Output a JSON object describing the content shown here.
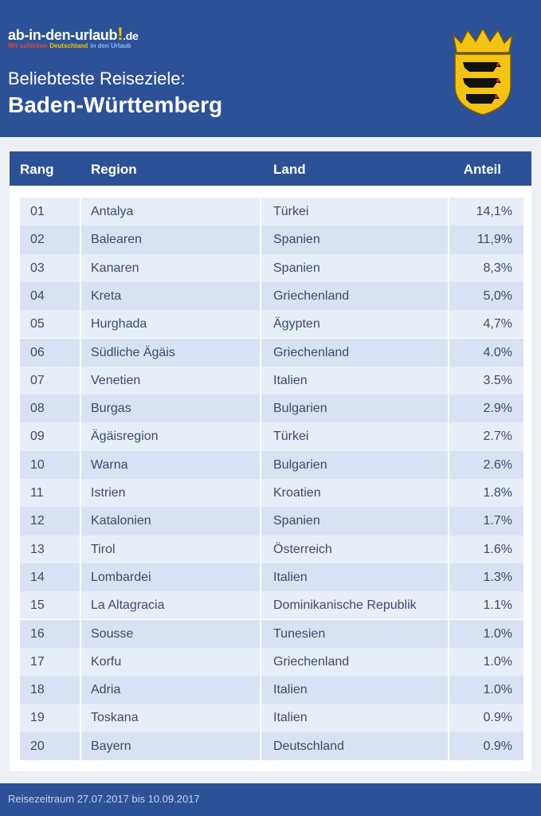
{
  "logo": {
    "name": "ab-in-den-urlaub",
    "mark": "!",
    "tld": ".de",
    "tagline": [
      "Wir schicken",
      "Deutschland",
      "in den Urlaub"
    ]
  },
  "header": {
    "subtitle": "Beliebteste Reiseziele:",
    "title": "Baden-Württemberg"
  },
  "table": {
    "columns": [
      "Rang",
      "Region",
      "Land",
      "Anteil"
    ],
    "rows": [
      [
        "01",
        "Antalya",
        "Türkei",
        "14,1%"
      ],
      [
        "02",
        "Balearen",
        "Spanien",
        "11,9%"
      ],
      [
        "03",
        "Kanaren",
        "Spanien",
        "8,3%"
      ],
      [
        "04",
        "Kreta",
        "Griechenland",
        "5,0%"
      ],
      [
        "05",
        "Hurghada",
        "Ägypten",
        "4,7%"
      ],
      [
        "06",
        "Südliche Ägäis",
        "Griechenland",
        "4.0%"
      ],
      [
        "07",
        "Venetien",
        "Italien",
        "3.5%"
      ],
      [
        "08",
        "Burgas",
        "Bulgarien",
        "2.9%"
      ],
      [
        "09",
        "Ägäisregion",
        "Türkei",
        "2.7%"
      ],
      [
        "10",
        "Warna",
        "Bulgarien",
        "2.6%"
      ],
      [
        "11",
        "Istrien",
        "Kroatien",
        "1.8%"
      ],
      [
        "12",
        "Katalonien",
        "Spanien",
        "1.7%"
      ],
      [
        "13",
        "Tirol",
        "Österreich",
        "1.6%"
      ],
      [
        "14",
        "Lombardei",
        "Italien",
        "1.3%"
      ],
      [
        "15",
        "La Altagracia",
        "Dominikanische Republik",
        "1.1%"
      ],
      [
        "16",
        "Sousse",
        "Tunesien",
        "1.0%"
      ],
      [
        "17",
        "Korfu",
        "Griechenland",
        "1.0%"
      ],
      [
        "18",
        "Adria",
        "Italien",
        "1.0%"
      ],
      [
        "19",
        "Toskana",
        "Italien",
        "0.9%"
      ],
      [
        "20",
        "Bayern",
        "Deutschland",
        "0.9%"
      ]
    ]
  },
  "footer": {
    "text": "Reisezeitraum 27.07.2017 bis 10.09.2017"
  }
}
